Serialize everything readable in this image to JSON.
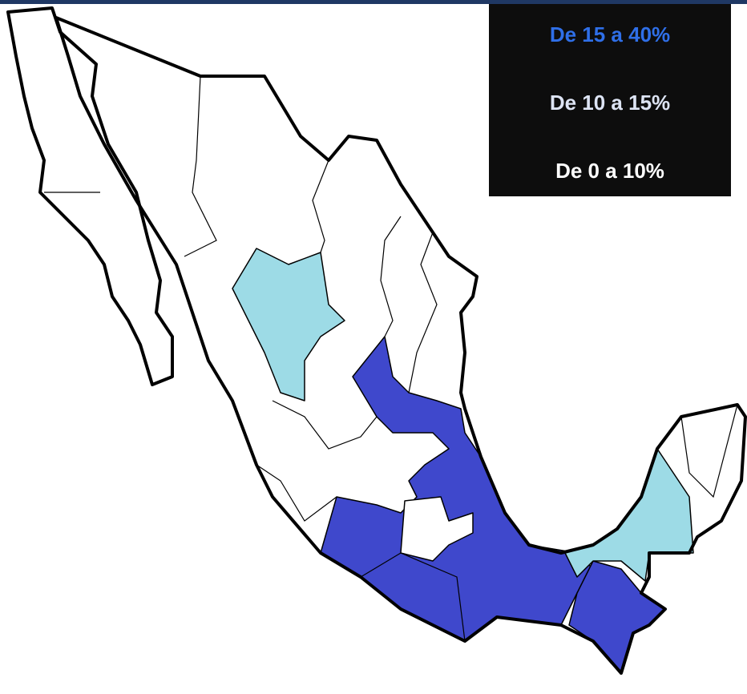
{
  "legend": {
    "items": [
      {
        "label": "De 15 a 40%",
        "color": "#2f6fe8"
      },
      {
        "label": "De 10 a 15%",
        "color": "#dde4f4"
      },
      {
        "label": "De 0 a 10%",
        "color": "#ffffff"
      }
    ]
  }
}
